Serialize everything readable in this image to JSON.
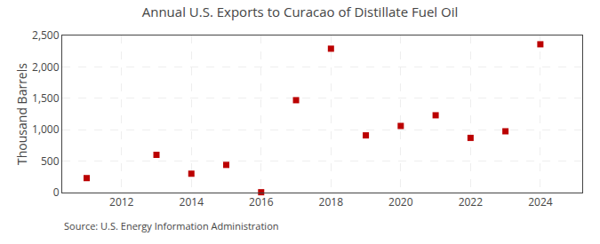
{
  "chart_data": {
    "type": "scatter",
    "title": "Annual U.S. Exports to Curacao of Distillate Fuel Oil",
    "ylabel": "Thousand Barrels",
    "annotations": [
      "Source: U.S. Energy Information Administration"
    ],
    "x": [
      2011,
      2013,
      2014,
      2015,
      2016,
      2017,
      2018,
      2019,
      2020,
      2021,
      2022,
      2023,
      2024
    ],
    "values": [
      230,
      600,
      300,
      440,
      5,
      1470,
      2290,
      910,
      1060,
      1230,
      870,
      975,
      2360
    ],
    "color": "#bb0000",
    "marker": "square",
    "xlim": [
      2010.3,
      2025.2
    ],
    "xticks": [
      2012,
      2014,
      2016,
      2018,
      2020,
      2022,
      2024
    ],
    "ylim": [
      0,
      2500
    ],
    "yticks": [
      0,
      500,
      {
        "value": 1000,
        "label": "1,000"
      },
      {
        "value": 1500,
        "label": "1,500"
      },
      {
        "value": 2000,
        "label": "2,000"
      },
      {
        "value": 2500,
        "label": "2,500"
      }
    ],
    "grid": true
  }
}
